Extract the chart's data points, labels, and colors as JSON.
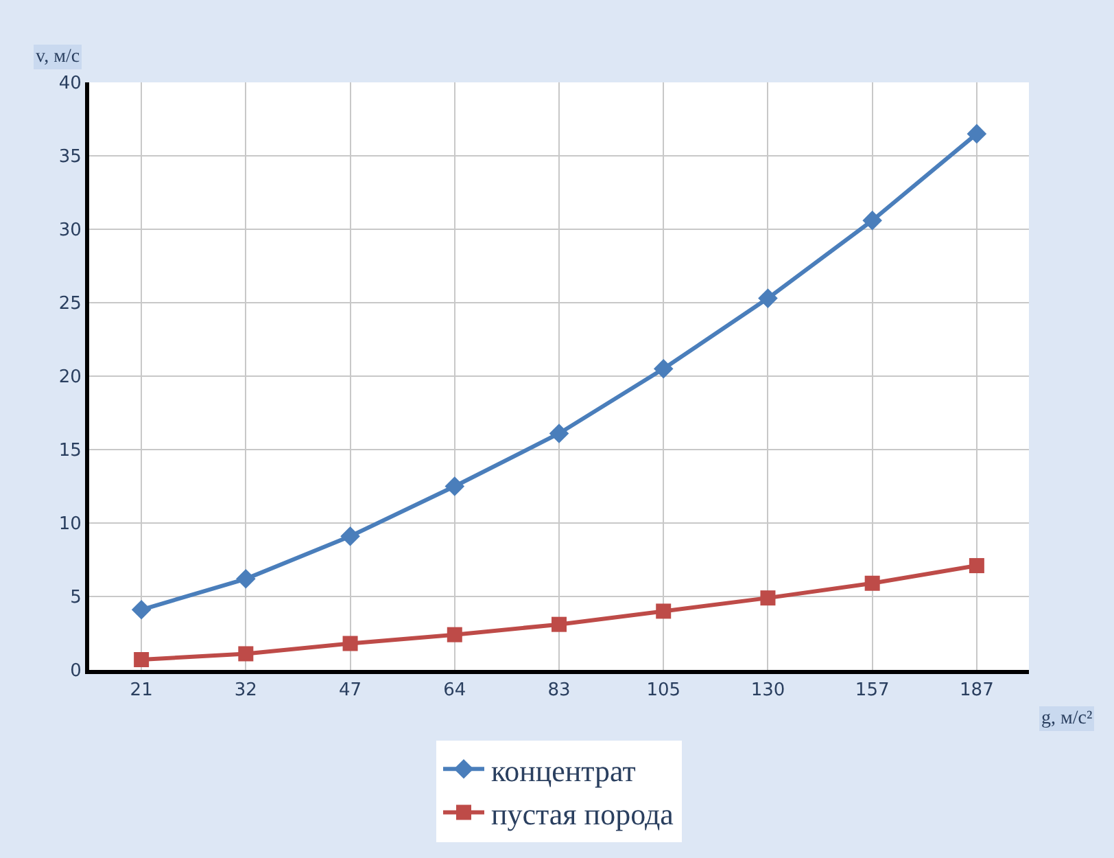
{
  "chart_data": {
    "type": "line",
    "xlabel": "g, м/с²",
    "ylabel": "v, м/с",
    "categories": [
      "21",
      "32",
      "47",
      "64",
      "83",
      "105",
      "130",
      "157",
      "187"
    ],
    "series": [
      {
        "name": "концентрат",
        "color": "#4a7ebb",
        "marker": "diamond",
        "values": [
          4.1,
          6.2,
          9.1,
          12.5,
          16.1,
          20.5,
          25.3,
          30.6,
          36.5
        ]
      },
      {
        "name": "пустая порода",
        "color": "#be4b48",
        "marker": "square",
        "values": [
          0.7,
          1.1,
          1.8,
          2.4,
          3.1,
          4.0,
          4.9,
          5.9,
          7.1
        ]
      }
    ],
    "ylim": [
      0,
      40
    ],
    "yticks": [
      0,
      5,
      10,
      15,
      20,
      25,
      30,
      35,
      40
    ],
    "grid": true,
    "legend": "bottom",
    "line_style": "solid"
  }
}
